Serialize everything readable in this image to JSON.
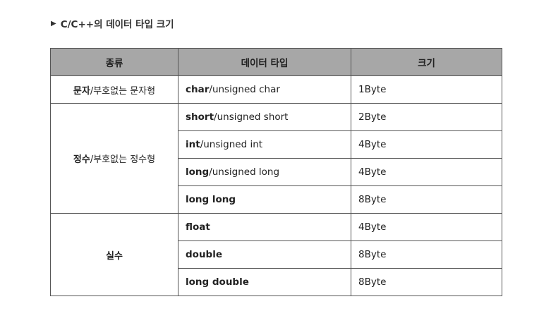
{
  "heading": {
    "marker": "▶",
    "title": "C/C++의 데이터 타입 크기"
  },
  "table": {
    "headers": [
      "종류",
      "데이터 타입",
      "크기"
    ],
    "groups": [
      {
        "category_main": "문자",
        "category_rest": "/부호없는 문자형",
        "rows": [
          {
            "type_main": "char",
            "type_rest": "/unsigned char",
            "size": "1Byte"
          }
        ]
      },
      {
        "category_main": "정수",
        "category_rest": "/부호없는 정수형",
        "rows": [
          {
            "type_main": "short",
            "type_rest": "/unsigned short",
            "size": "2Byte"
          },
          {
            "type_main": "int",
            "type_rest": "/unsigned int",
            "size": "4Byte"
          },
          {
            "type_main": "long",
            "type_rest": "/unsigned long",
            "size": "4Byte"
          },
          {
            "type_main": "long long",
            "type_rest": "",
            "size": "8Byte"
          }
        ]
      },
      {
        "category_main": "실수",
        "category_rest": "",
        "rows": [
          {
            "type_main": "float",
            "type_rest": "",
            "size": "4Byte"
          },
          {
            "type_main": "double",
            "type_rest": "",
            "size": "8Byte"
          },
          {
            "type_main": "long double",
            "type_rest": "",
            "size": "8Byte"
          }
        ]
      }
    ]
  }
}
